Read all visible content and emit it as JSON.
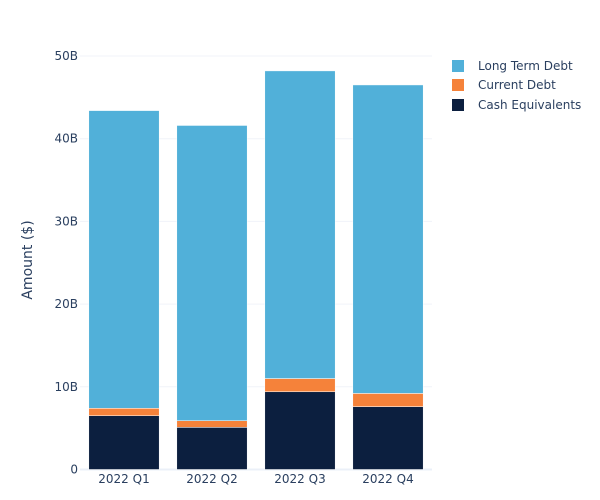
{
  "chart_data": {
    "type": "bar",
    "stacked": true,
    "title": "",
    "xlabel": "",
    "ylabel": "Amount ($)",
    "categories": [
      "2022 Q1",
      "2022 Q2",
      "2022 Q3",
      "2022 Q4"
    ],
    "series": [
      {
        "name": "Cash Equivalents",
        "color": "#0c1f3f",
        "values": [
          6.5,
          5.1,
          9.4,
          7.6
        ]
      },
      {
        "name": "Current Debt",
        "color": "#f5823a",
        "values": [
          0.9,
          0.8,
          1.6,
          1.6
        ]
      },
      {
        "name": "Long Term Debt",
        "color": "#51b0d9",
        "values": [
          36.0,
          35.7,
          37.2,
          37.3
        ]
      }
    ],
    "ylim": [
      0,
      50
    ],
    "yticks": [
      0,
      10,
      20,
      30,
      40,
      50
    ],
    "ytick_labels": [
      "0",
      "10B",
      "20B",
      "30B",
      "40B",
      "50B"
    ],
    "unit": "billions USD",
    "grid": true,
    "legend_position": "top-right",
    "legend_order": [
      "Long Term Debt",
      "Current Debt",
      "Cash Equivalents"
    ]
  }
}
